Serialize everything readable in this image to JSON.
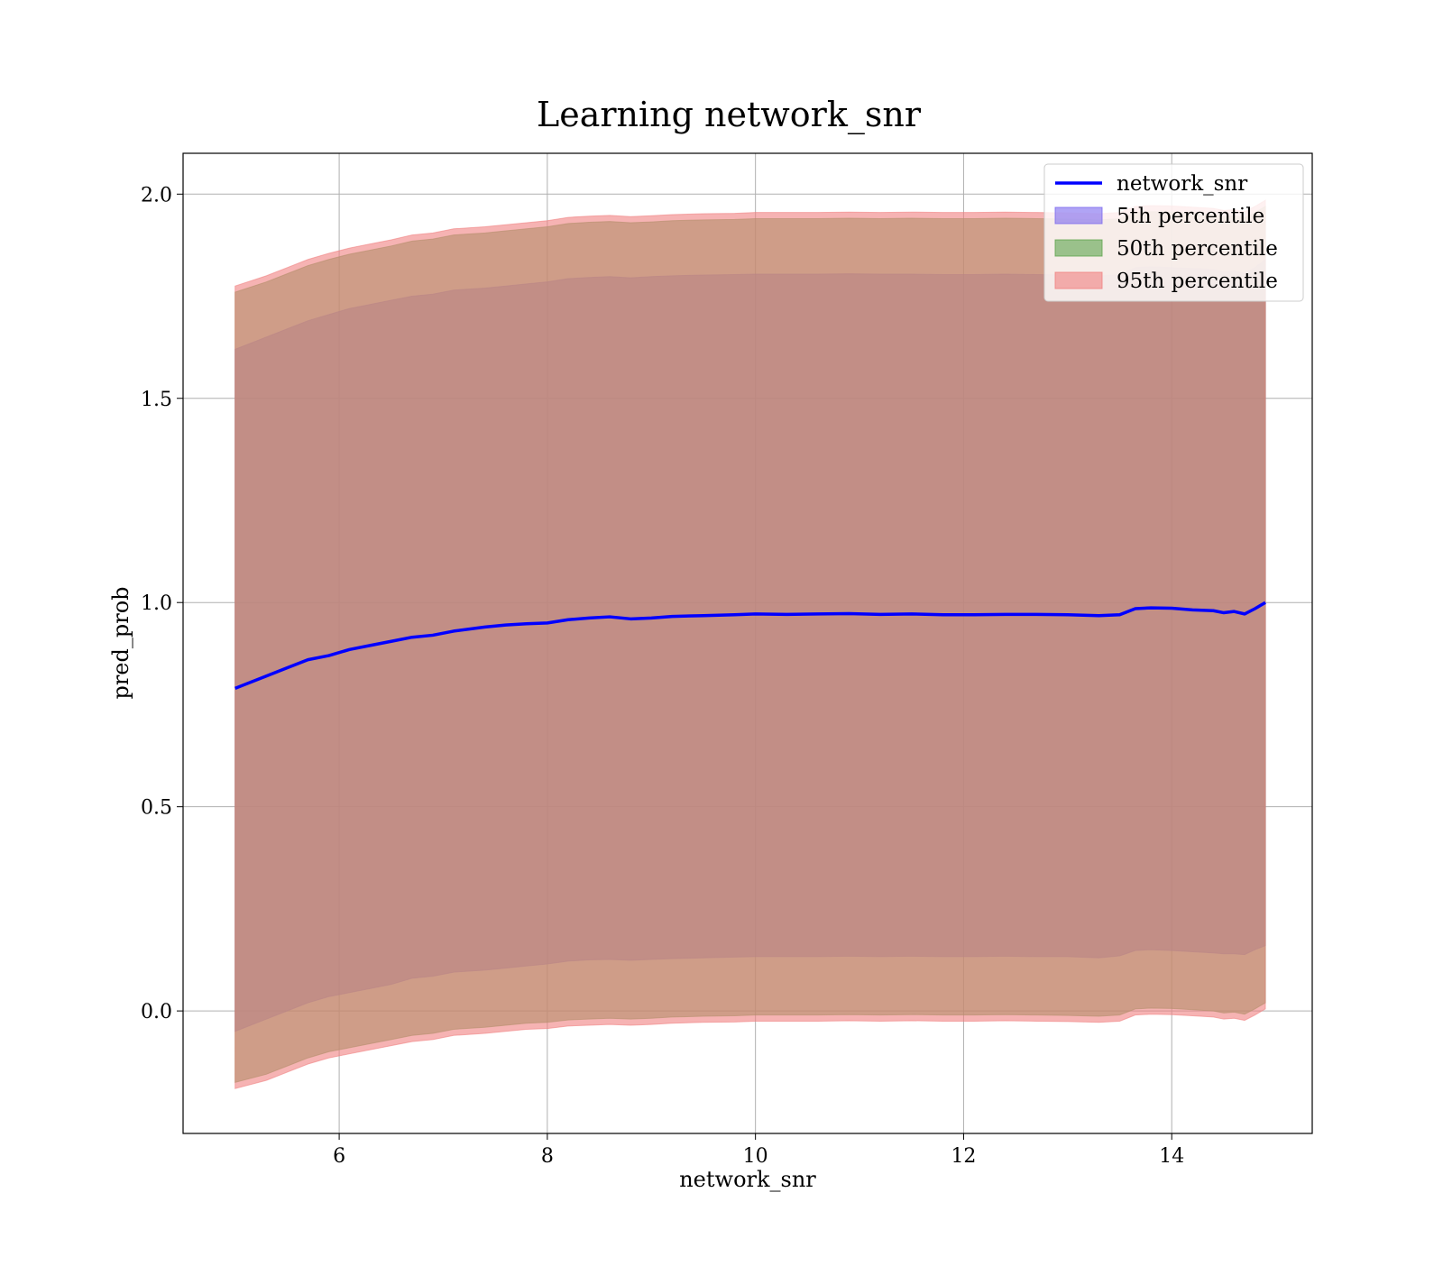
{
  "chart_data": {
    "type": "area",
    "title": "Learning network_snr",
    "xlabel": "network_snr",
    "ylabel": "pred_prob",
    "xlim": [
      4.5,
      15.35
    ],
    "ylim": [
      -0.3,
      2.1
    ],
    "xticks": [
      6,
      8,
      10,
      12,
      14
    ],
    "yticks": [
      0.0,
      0.5,
      1.0,
      1.5,
      2.0
    ],
    "xtick_labels": [
      "6",
      "8",
      "10",
      "12",
      "14"
    ],
    "ytick_labels": [
      "0.0",
      "0.5",
      "1.0",
      "1.5",
      "2.0"
    ],
    "grid": true,
    "legend_position": "top-right",
    "legend": [
      {
        "label": "network_snr",
        "kind": "line",
        "color": "#0000ff"
      },
      {
        "label": "5th percentile",
        "kind": "patch",
        "color": "#7b68ee"
      },
      {
        "label": "50th percentile",
        "kind": "patch",
        "color": "#5ca34c"
      },
      {
        "label": "95th percentile",
        "kind": "patch",
        "color": "#f08080"
      }
    ],
    "x": [
      5.0,
      5.3,
      5.5,
      5.7,
      5.9,
      6.1,
      6.3,
      6.5,
      6.7,
      6.9,
      7.1,
      7.4,
      7.6,
      7.8,
      8.0,
      8.2,
      8.4,
      8.6,
      8.8,
      9.0,
      9.2,
      9.5,
      9.8,
      10.0,
      10.3,
      10.6,
      10.9,
      11.2,
      11.5,
      11.8,
      12.1,
      12.4,
      12.7,
      13.0,
      13.3,
      13.5,
      13.65,
      13.8,
      14.0,
      14.2,
      14.4,
      14.5,
      14.6,
      14.7,
      14.8,
      14.9
    ],
    "series": [
      {
        "name": "network_snr",
        "values": [
          0.79,
          0.82,
          0.84,
          0.86,
          0.87,
          0.885,
          0.895,
          0.905,
          0.915,
          0.92,
          0.93,
          0.94,
          0.945,
          0.948,
          0.95,
          0.958,
          0.962,
          0.965,
          0.96,
          0.962,
          0.966,
          0.968,
          0.97,
          0.972,
          0.971,
          0.972,
          0.973,
          0.971,
          0.972,
          0.97,
          0.97,
          0.971,
          0.971,
          0.97,
          0.968,
          0.97,
          0.985,
          0.987,
          0.986,
          0.982,
          0.98,
          0.975,
          0.978,
          0.972,
          0.985,
          1.0
        ]
      }
    ],
    "bands": [
      {
        "name": "5th percentile",
        "color": "#7b68ee",
        "lower": [
          -0.05,
          -0.02,
          0.0,
          0.02,
          0.035,
          0.045,
          0.055,
          0.065,
          0.08,
          0.085,
          0.095,
          0.1,
          0.105,
          0.11,
          0.115,
          0.122,
          0.125,
          0.126,
          0.124,
          0.126,
          0.128,
          0.13,
          0.132,
          0.133,
          0.133,
          0.133,
          0.134,
          0.133,
          0.134,
          0.133,
          0.133,
          0.134,
          0.133,
          0.133,
          0.13,
          0.135,
          0.148,
          0.15,
          0.148,
          0.145,
          0.142,
          0.14,
          0.14,
          0.138,
          0.15,
          0.16
        ],
        "upper": [
          1.62,
          1.65,
          1.67,
          1.69,
          1.705,
          1.72,
          1.73,
          1.74,
          1.75,
          1.755,
          1.765,
          1.77,
          1.775,
          1.78,
          1.785,
          1.793,
          1.796,
          1.798,
          1.795,
          1.798,
          1.8,
          1.802,
          1.803,
          1.804,
          1.804,
          1.804,
          1.805,
          1.804,
          1.804,
          1.803,
          1.803,
          1.804,
          1.803,
          1.802,
          1.8,
          1.802,
          1.82,
          1.822,
          1.82,
          1.818,
          1.815,
          1.81,
          1.812,
          1.806,
          1.82,
          1.84
        ]
      },
      {
        "name": "50th percentile",
        "color": "#5ca34c",
        "lower": [
          -0.175,
          -0.155,
          -0.135,
          -0.115,
          -0.1,
          -0.09,
          -0.08,
          -0.07,
          -0.06,
          -0.055,
          -0.045,
          -0.04,
          -0.035,
          -0.03,
          -0.028,
          -0.022,
          -0.02,
          -0.018,
          -0.02,
          -0.018,
          -0.015,
          -0.013,
          -0.012,
          -0.01,
          -0.01,
          -0.01,
          -0.009,
          -0.01,
          -0.009,
          -0.01,
          -0.01,
          -0.009,
          -0.01,
          -0.011,
          -0.013,
          -0.01,
          0.005,
          0.007,
          0.006,
          0.003,
          0.0,
          -0.005,
          -0.003,
          -0.008,
          0.005,
          0.02
        ],
        "upper": [
          1.76,
          1.785,
          1.805,
          1.825,
          1.84,
          1.853,
          1.863,
          1.873,
          1.885,
          1.89,
          1.9,
          1.905,
          1.91,
          1.915,
          1.92,
          1.928,
          1.931,
          1.933,
          1.93,
          1.932,
          1.935,
          1.937,
          1.938,
          1.94,
          1.94,
          1.94,
          1.941,
          1.94,
          1.941,
          1.94,
          1.94,
          1.941,
          1.94,
          1.939,
          1.937,
          1.94,
          1.955,
          1.957,
          1.956,
          1.953,
          1.95,
          1.945,
          1.947,
          1.942,
          1.955,
          1.97
        ]
      },
      {
        "name": "95th percentile",
        "color": "#f08080",
        "lower": [
          -0.19,
          -0.17,
          -0.15,
          -0.13,
          -0.115,
          -0.105,
          -0.095,
          -0.085,
          -0.075,
          -0.07,
          -0.06,
          -0.055,
          -0.05,
          -0.045,
          -0.043,
          -0.037,
          -0.035,
          -0.033,
          -0.035,
          -0.033,
          -0.03,
          -0.028,
          -0.027,
          -0.025,
          -0.025,
          -0.025,
          -0.024,
          -0.025,
          -0.024,
          -0.025,
          -0.025,
          -0.024,
          -0.025,
          -0.026,
          -0.028,
          -0.025,
          -0.01,
          -0.008,
          -0.009,
          -0.012,
          -0.015,
          -0.02,
          -0.018,
          -0.023,
          -0.01,
          0.005
        ],
        "upper": [
          1.775,
          1.8,
          1.82,
          1.84,
          1.855,
          1.868,
          1.878,
          1.888,
          1.9,
          1.905,
          1.915,
          1.92,
          1.925,
          1.93,
          1.935,
          1.943,
          1.946,
          1.948,
          1.945,
          1.947,
          1.95,
          1.952,
          1.953,
          1.955,
          1.955,
          1.955,
          1.956,
          1.955,
          1.956,
          1.955,
          1.955,
          1.956,
          1.955,
          1.954,
          1.952,
          1.955,
          1.97,
          1.972,
          1.971,
          1.968,
          1.965,
          1.96,
          1.962,
          1.957,
          1.97,
          1.985
        ]
      }
    ]
  }
}
